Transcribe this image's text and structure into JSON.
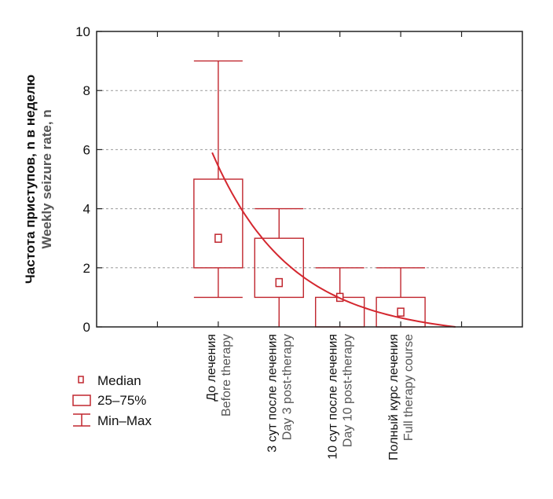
{
  "colors": {
    "accent": "#c0262e",
    "axis": "#222222",
    "grid": "#9a9a9a"
  },
  "chart_data": {
    "type": "box",
    "ylabel_ru": "Частота приступов, n в неделю",
    "ylabel_en": "Weekly seizure rate, n",
    "ylim": [
      0,
      10
    ],
    "yticks": [
      "0",
      "2",
      "4",
      "6",
      "8",
      "10"
    ],
    "grid": "horizontal dashed",
    "categories": [
      {
        "ru": "До лечения",
        "en": "Before therapy",
        "min": 1,
        "q1": 2,
        "median": 3,
        "q3": 5,
        "max": 9
      },
      {
        "ru": "3 сут после лечения",
        "en": "Day 3 post-therapy",
        "min": 0,
        "q1": 1,
        "median": 1.5,
        "q3": 3,
        "max": 4
      },
      {
        "ru": "10 сут после лечения",
        "en": "Day 10 post-therapy",
        "min": 0,
        "q1": 0,
        "median": 1,
        "q3": 1,
        "max": 2
      },
      {
        "ru": "Полный курс лечения",
        "en": "Full therapy course",
        "min": 0,
        "q1": 0,
        "median": 0.5,
        "q3": 1,
        "max": 2
      }
    ],
    "trend": {
      "type": "exponential decay",
      "start": [
        0.9,
        5.9
      ],
      "end": [
        4.9,
        0.0
      ]
    },
    "legend": {
      "median": "Median",
      "iqr": "25–75%",
      "range": "Min–Max",
      "placement": "bottom-left"
    }
  }
}
